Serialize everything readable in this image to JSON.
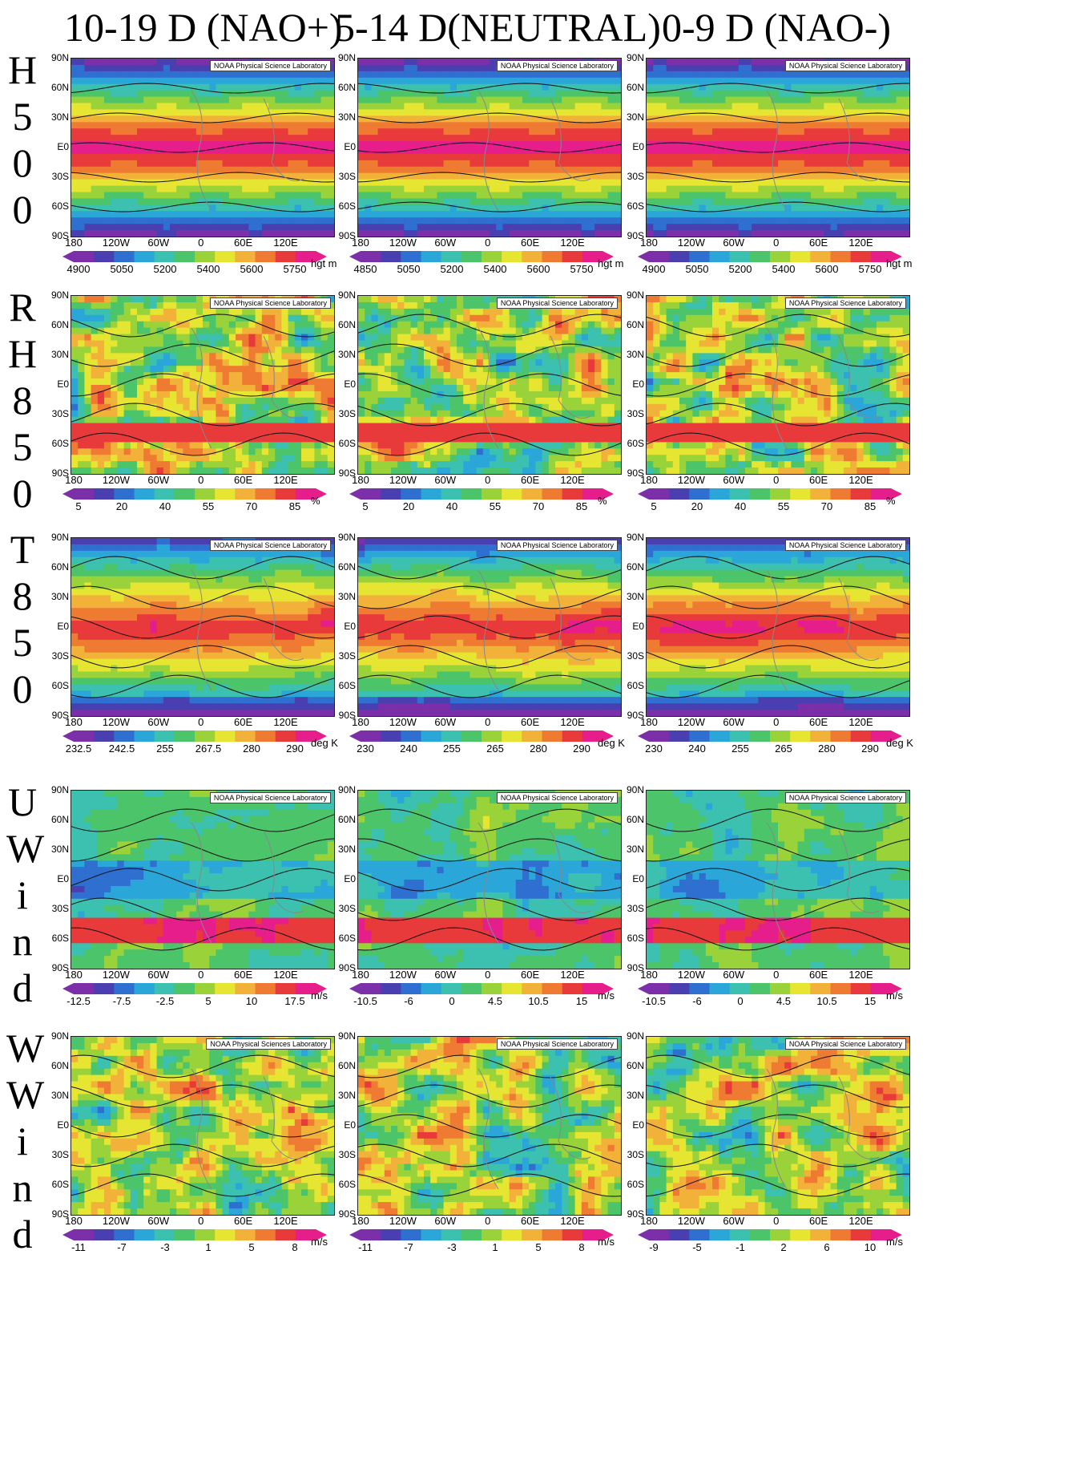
{
  "columns": [
    {
      "title": "10-19 D (NAO+)"
    },
    {
      "title": "5-14 D(NEUTRAL)"
    },
    {
      "title": "0-9 D (NAO-)"
    }
  ],
  "rows": [
    {
      "label": "H500",
      "pattern": "height",
      "scales": [
        {
          "labels": [
            "4900",
            "5050",
            "5200",
            "5400",
            "5600",
            "5750"
          ],
          "unit": "hgt m"
        },
        {
          "labels": [
            "4850",
            "5050",
            "5200",
            "5400",
            "5600",
            "5750"
          ],
          "unit": "hgt m"
        },
        {
          "labels": [
            "4900",
            "5050",
            "5200",
            "5400",
            "5600",
            "5750"
          ],
          "unit": "hgt m"
        }
      ]
    },
    {
      "label": "RH850",
      "pattern": "rh",
      "scales": [
        {
          "labels": [
            "5",
            "20",
            "40",
            "55",
            "70",
            "85"
          ],
          "unit": "%"
        },
        {
          "labels": [
            "5",
            "20",
            "40",
            "55",
            "70",
            "85"
          ],
          "unit": "%"
        },
        {
          "labels": [
            "5",
            "20",
            "40",
            "55",
            "70",
            "85"
          ],
          "unit": "%"
        }
      ]
    },
    {
      "label": "T850",
      "pattern": "temp",
      "scales": [
        {
          "labels": [
            "232.5",
            "242.5",
            "255",
            "267.5",
            "280",
            "290"
          ],
          "unit": "deg K"
        },
        {
          "labels": [
            "230",
            "240",
            "255",
            "265",
            "280",
            "290"
          ],
          "unit": "deg K"
        },
        {
          "labels": [
            "230",
            "240",
            "255",
            "265",
            "280",
            "290"
          ],
          "unit": "deg K"
        }
      ]
    },
    {
      "label": "UWind",
      "pattern": "uwind",
      "scales": [
        {
          "labels": [
            "-12.5",
            "-7.5",
            "-2.5",
            "5",
            "10",
            "17.5"
          ],
          "unit": "m/s"
        },
        {
          "labels": [
            "-10.5",
            "-6",
            "0",
            "4.5",
            "10.5",
            "15"
          ],
          "unit": "m/s"
        },
        {
          "labels": [
            "-10.5",
            "-6",
            "0",
            "4.5",
            "10.5",
            "15"
          ],
          "unit": "m/s"
        }
      ]
    },
    {
      "label": "WWind",
      "pattern": "wwind",
      "scales": [
        {
          "labels": [
            "-11",
            "-7",
            "-3",
            "1",
            "5",
            "8"
          ],
          "unit": "m/s"
        },
        {
          "labels": [
            "-11",
            "-7",
            "-3",
            "1",
            "5",
            "8"
          ],
          "unit": "m/s"
        },
        {
          "labels": [
            "-9",
            "-5",
            "-1",
            "2",
            "6",
            "10"
          ],
          "unit": "m/s"
        }
      ]
    }
  ],
  "credit": "NOAA Physical Science Laboratory",
  "credit_alt": "NOAA Physical Sciences Laboratory",
  "lat_ticks": [
    "90N",
    "60N",
    "30N",
    "E0",
    "30S",
    "60S",
    "90S"
  ],
  "lon_ticks": [
    "180",
    "120W",
    "60W",
    "0",
    "60E",
    "120E"
  ],
  "palette": [
    "#7b2fa8",
    "#4a3fb0",
    "#2f6fd0",
    "#2aa6d8",
    "#3cc0b0",
    "#4cc46a",
    "#9ad23a",
    "#e6e632",
    "#f2b23a",
    "#ef7a32",
    "#e83a3a",
    "#e61e8c"
  ]
}
